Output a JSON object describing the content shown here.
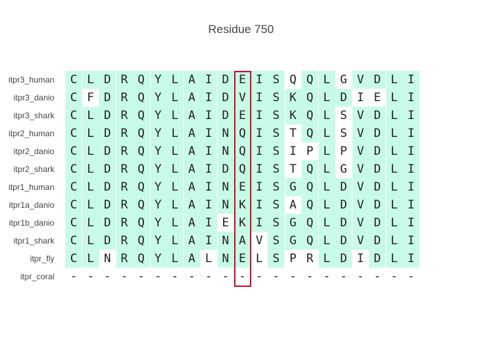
{
  "title": "Residue 750",
  "highlight_column": 10,
  "consensus_color": "#c7fbe8",
  "highlight_color": "#c8102e",
  "sequences": [
    {
      "name": "itpr3_human",
      "residues": [
        "C",
        "L",
        "D",
        "R",
        "Q",
        "Y",
        "L",
        "A",
        "I",
        "D",
        "E",
        "I",
        "S",
        "Q",
        "Q",
        "L",
        "G",
        "V",
        "D",
        "L",
        "I"
      ],
      "conserved": [
        1,
        1,
        1,
        1,
        1,
        1,
        1,
        1,
        1,
        1,
        1,
        1,
        1,
        0,
        1,
        1,
        0,
        1,
        1,
        1,
        1
      ]
    },
    {
      "name": "itpr3_danio",
      "residues": [
        "C",
        "F",
        "D",
        "R",
        "Q",
        "Y",
        "L",
        "A",
        "I",
        "D",
        "V",
        "I",
        "S",
        "K",
        "Q",
        "L",
        "D",
        "I",
        "E",
        "L",
        "I"
      ],
      "conserved": [
        1,
        0,
        1,
        1,
        1,
        1,
        1,
        1,
        1,
        1,
        1,
        1,
        1,
        1,
        1,
        1,
        1,
        0,
        0,
        1,
        1
      ]
    },
    {
      "name": "itpr3_shark",
      "residues": [
        "C",
        "L",
        "D",
        "R",
        "Q",
        "Y",
        "L",
        "A",
        "I",
        "D",
        "E",
        "I",
        "S",
        "K",
        "Q",
        "L",
        "S",
        "V",
        "D",
        "L",
        "I"
      ],
      "conserved": [
        1,
        1,
        1,
        1,
        1,
        1,
        1,
        1,
        1,
        1,
        1,
        1,
        1,
        1,
        1,
        1,
        0,
        1,
        1,
        1,
        1
      ]
    },
    {
      "name": "itpr2_human",
      "residues": [
        "C",
        "L",
        "D",
        "R",
        "Q",
        "Y",
        "L",
        "A",
        "I",
        "N",
        "Q",
        "I",
        "S",
        "T",
        "Q",
        "L",
        "S",
        "V",
        "D",
        "L",
        "I"
      ],
      "conserved": [
        1,
        1,
        1,
        1,
        1,
        1,
        1,
        1,
        1,
        1,
        1,
        1,
        1,
        0,
        1,
        1,
        0,
        1,
        1,
        1,
        1
      ]
    },
    {
      "name": "itpr2_danio",
      "residues": [
        "C",
        "L",
        "D",
        "R",
        "Q",
        "Y",
        "L",
        "A",
        "I",
        "N",
        "Q",
        "I",
        "S",
        "I",
        "P",
        "L",
        "P",
        "V",
        "D",
        "L",
        "I"
      ],
      "conserved": [
        1,
        1,
        1,
        1,
        1,
        1,
        1,
        1,
        1,
        1,
        1,
        1,
        1,
        0,
        0,
        1,
        0,
        1,
        1,
        1,
        1
      ]
    },
    {
      "name": "itpr2_shark",
      "residues": [
        "C",
        "L",
        "D",
        "R",
        "Q",
        "Y",
        "L",
        "A",
        "I",
        "D",
        "Q",
        "I",
        "S",
        "T",
        "Q",
        "L",
        "G",
        "V",
        "D",
        "L",
        "I"
      ],
      "conserved": [
        1,
        1,
        1,
        1,
        1,
        1,
        1,
        1,
        1,
        1,
        1,
        1,
        1,
        0,
        1,
        1,
        0,
        1,
        1,
        1,
        1
      ]
    },
    {
      "name": "itpr1_human",
      "residues": [
        "C",
        "L",
        "D",
        "R",
        "Q",
        "Y",
        "L",
        "A",
        "I",
        "N",
        "E",
        "I",
        "S",
        "G",
        "Q",
        "L",
        "D",
        "V",
        "D",
        "L",
        "I"
      ],
      "conserved": [
        1,
        1,
        1,
        1,
        1,
        1,
        1,
        1,
        1,
        1,
        1,
        1,
        1,
        1,
        1,
        1,
        1,
        1,
        1,
        1,
        1
      ]
    },
    {
      "name": "itpr1a_danio",
      "residues": [
        "C",
        "L",
        "D",
        "R",
        "Q",
        "Y",
        "L",
        "A",
        "I",
        "N",
        "K",
        "I",
        "S",
        "A",
        "Q",
        "L",
        "D",
        "V",
        "D",
        "L",
        "I"
      ],
      "conserved": [
        1,
        1,
        1,
        1,
        1,
        1,
        1,
        1,
        1,
        1,
        1,
        1,
        1,
        0,
        1,
        1,
        1,
        1,
        1,
        1,
        1
      ]
    },
    {
      "name": "itpr1b_danio",
      "residues": [
        "C",
        "L",
        "D",
        "R",
        "Q",
        "Y",
        "L",
        "A",
        "I",
        "E",
        "K",
        "I",
        "S",
        "G",
        "Q",
        "L",
        "D",
        "V",
        "D",
        "L",
        "I"
      ],
      "conserved": [
        1,
        1,
        1,
        1,
        1,
        1,
        1,
        1,
        1,
        0,
        1,
        1,
        1,
        1,
        1,
        1,
        1,
        1,
        1,
        1,
        1
      ]
    },
    {
      "name": "itpr1_shark",
      "residues": [
        "C",
        "L",
        "D",
        "R",
        "Q",
        "Y",
        "L",
        "A",
        "I",
        "N",
        "A",
        "V",
        "S",
        "G",
        "Q",
        "L",
        "D",
        "V",
        "D",
        "L",
        "I"
      ],
      "conserved": [
        1,
        1,
        1,
        1,
        1,
        1,
        1,
        1,
        1,
        1,
        1,
        0,
        1,
        1,
        1,
        1,
        1,
        1,
        1,
        1,
        1
      ]
    },
    {
      "name": "itpr_fly",
      "residues": [
        "C",
        "L",
        "N",
        "R",
        "Q",
        "Y",
        "L",
        "A",
        "L",
        "N",
        "E",
        "L",
        "S",
        "P",
        "R",
        "L",
        "D",
        "I",
        "D",
        "L",
        "I"
      ],
      "conserved": [
        1,
        1,
        0,
        1,
        1,
        1,
        1,
        1,
        0,
        1,
        1,
        0,
        1,
        0,
        0,
        1,
        1,
        0,
        1,
        1,
        1
      ]
    },
    {
      "name": "itpr_coral",
      "residues": [
        "-",
        "-",
        "-",
        "-",
        "-",
        "-",
        "-",
        "-",
        "-",
        "-",
        "-",
        "-",
        "-",
        "-",
        "-",
        "-",
        "-",
        "-",
        "-",
        "-",
        "-"
      ],
      "conserved": [
        0,
        0,
        0,
        0,
        0,
        0,
        0,
        0,
        0,
        0,
        0,
        0,
        0,
        0,
        0,
        0,
        0,
        0,
        0,
        0,
        0
      ]
    }
  ]
}
